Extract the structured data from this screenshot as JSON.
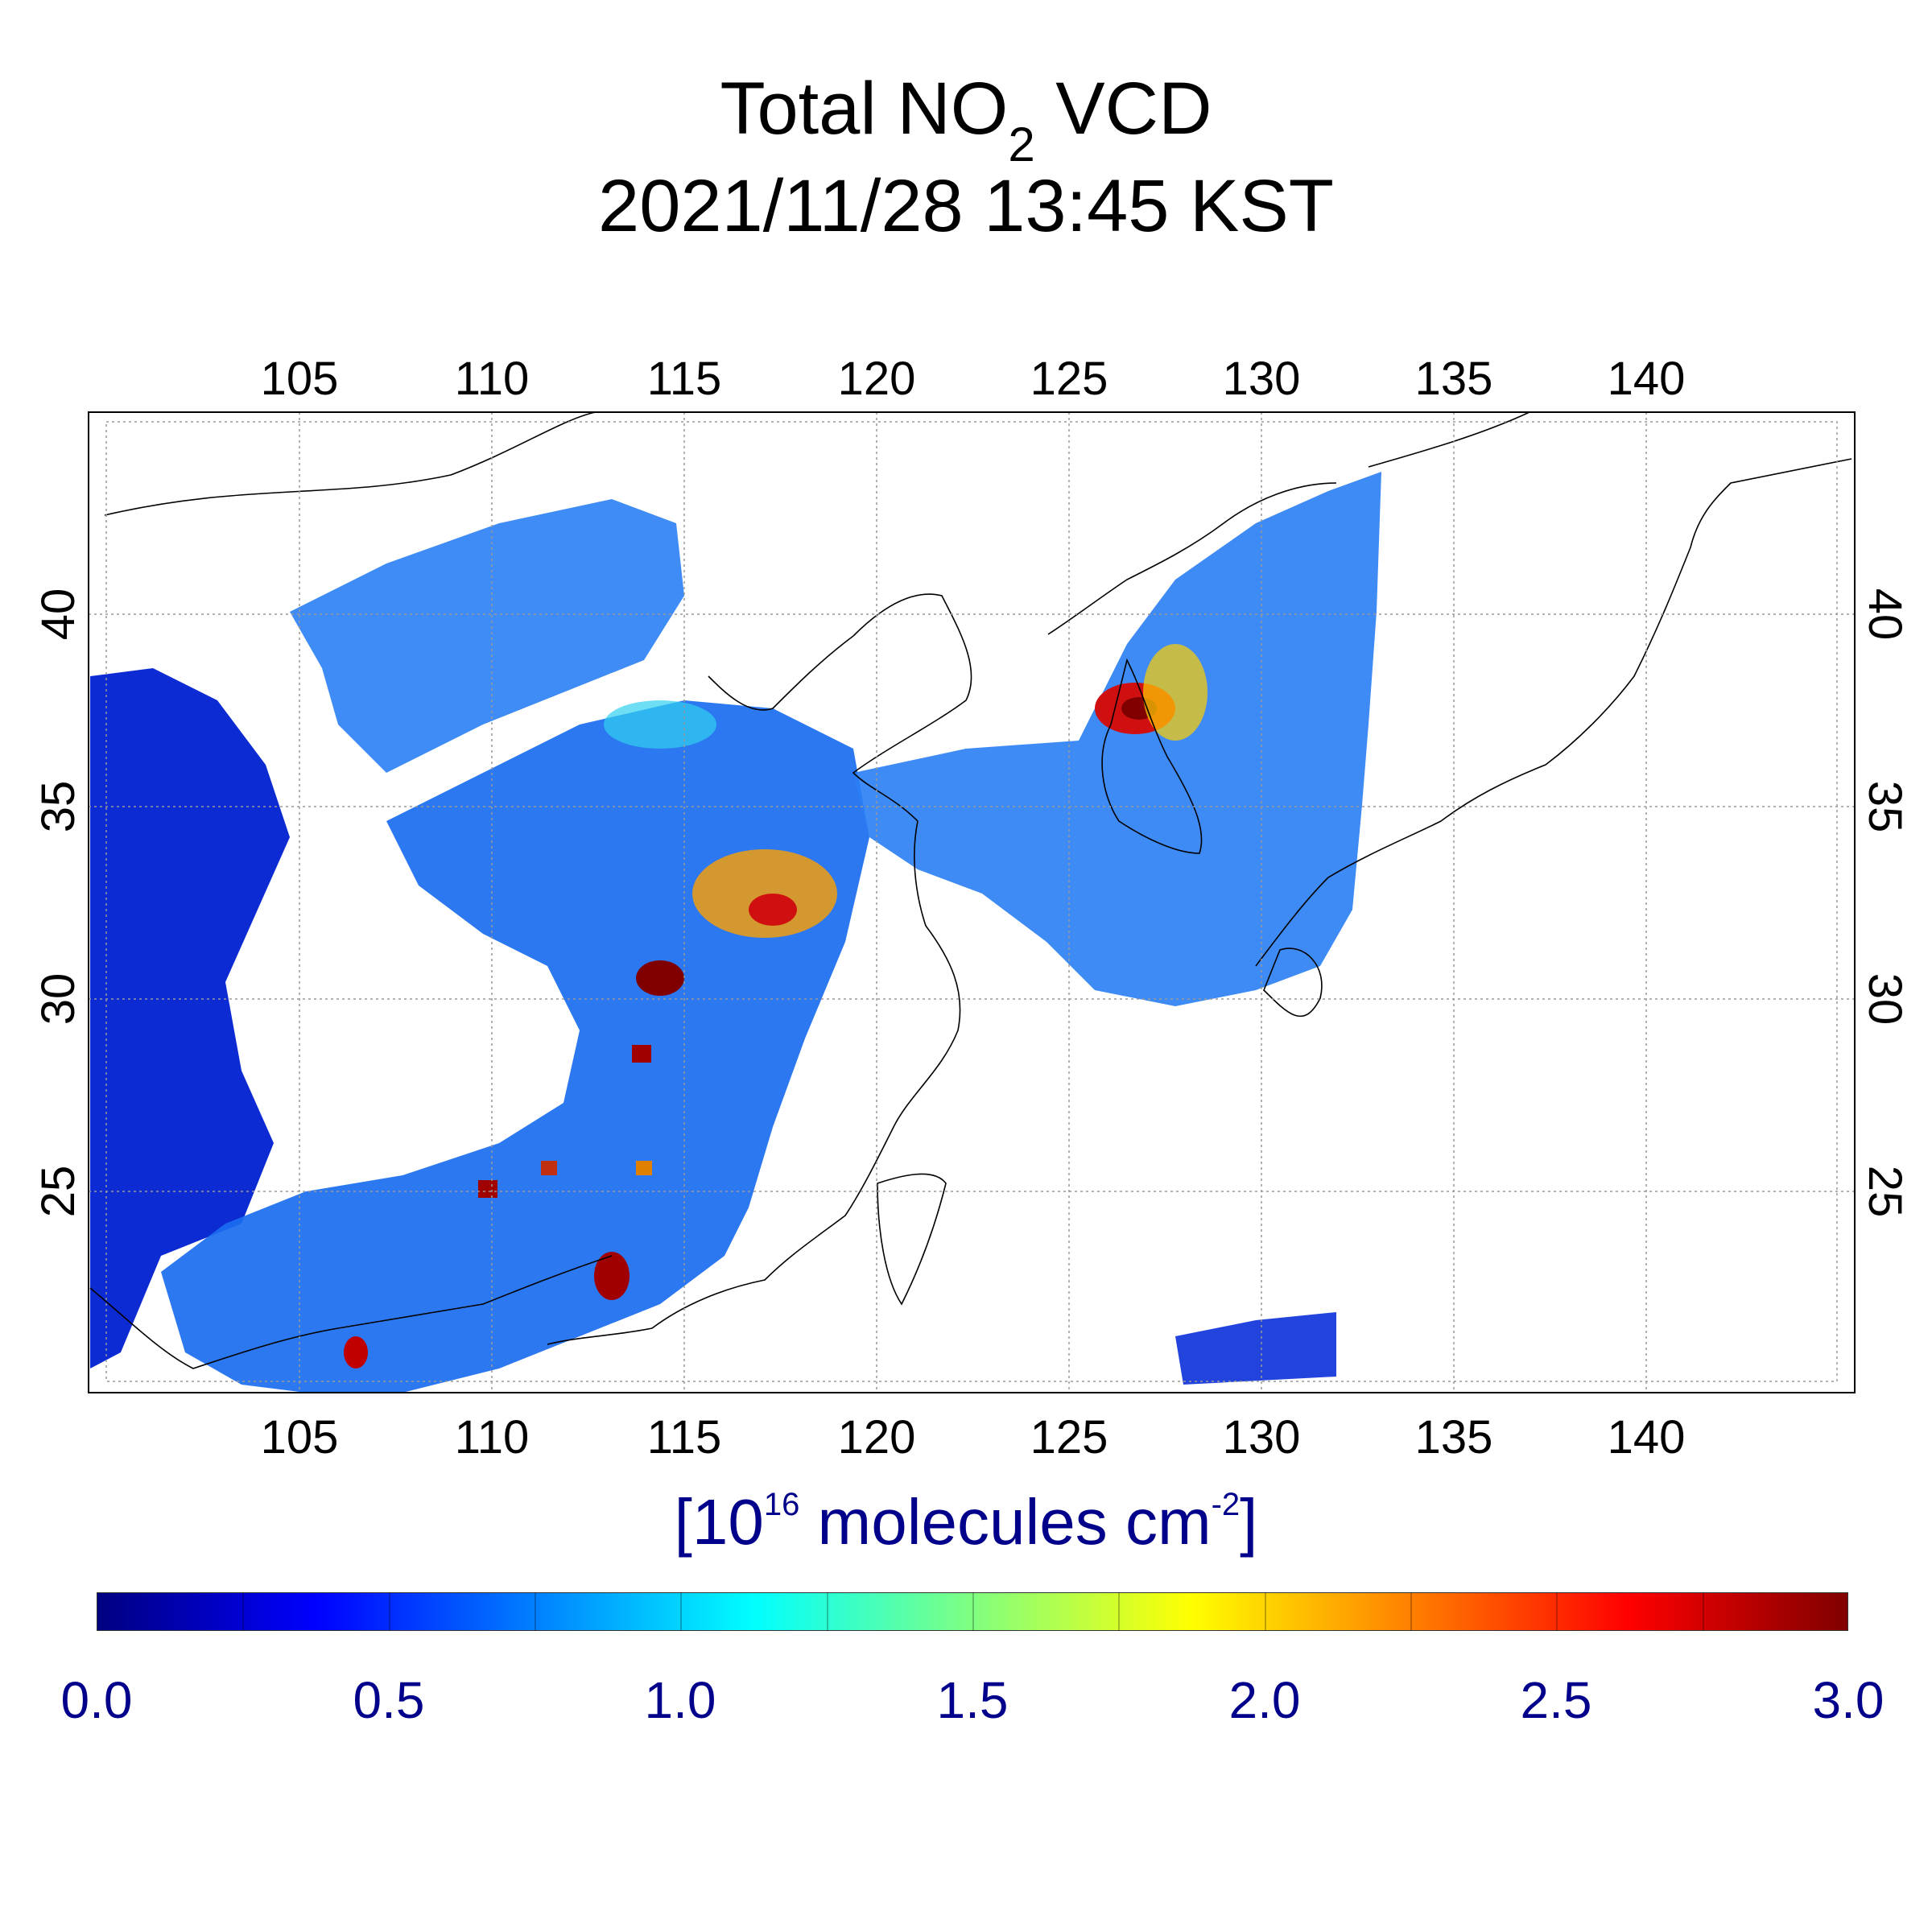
{
  "title": {
    "line1_prefix": "Total NO",
    "line1_sub": "2",
    "line1_suffix": " VCD",
    "line2": "2021/11/28 13:45 KST"
  },
  "map": {
    "lon_range": [
      99.5,
      145.5
    ],
    "lat_range": [
      19.5,
      45.0
    ],
    "lon_ticks": [
      "105",
      "110",
      "115",
      "120",
      "125",
      "130",
      "135",
      "140"
    ],
    "lat_ticks": [
      "40",
      "35",
      "30",
      "25"
    ],
    "grid": true,
    "colors": {
      "frame": "#000000",
      "grid": "#999999",
      "coast": "#000000"
    }
  },
  "colorbar": {
    "unit": {
      "prefix": "[10",
      "exp": "16",
      "middle": " molecules cm",
      "exp2": "-2",
      "suffix": "]"
    },
    "min": 0.0,
    "max": 3.0,
    "ticks": [
      "0.0",
      "0.5",
      "1.0",
      "1.5",
      "2.0",
      "2.5",
      "3.0"
    ],
    "colors": [
      "#000080",
      "#0000ff",
      "#0080ff",
      "#00ffff",
      "#80ff80",
      "#ffff00",
      "#ff8000",
      "#ff0000",
      "#800000"
    ]
  }
}
